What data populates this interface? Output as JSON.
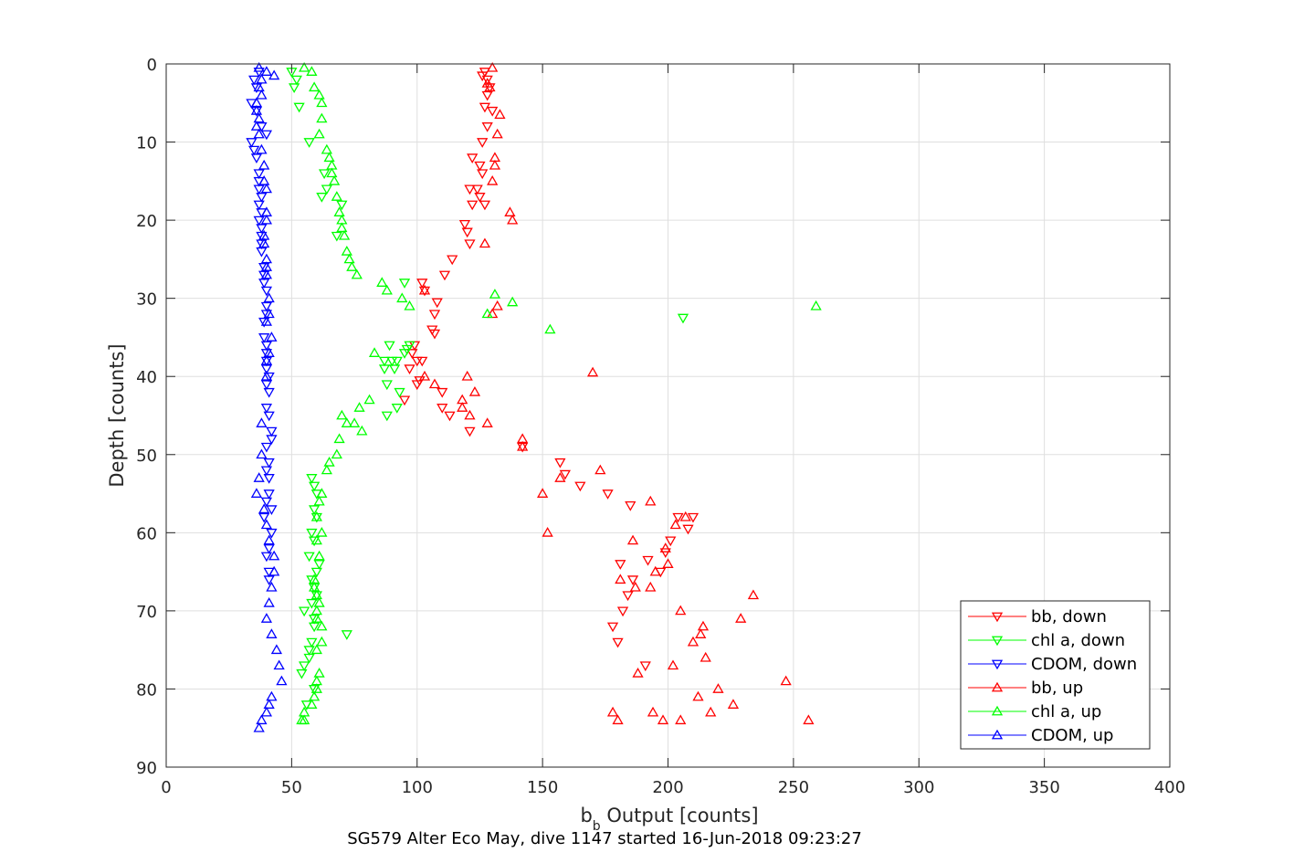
{
  "chart_data": {
    "type": "scatter",
    "xlabel_main": "b",
    "xlabel_sub": "b",
    "xlabel_rest": " Output [counts]",
    "ylabel": "Depth [counts]",
    "title": "SG579 Alter Eco May, dive 1147 started 16-Jun-2018 09:23:27",
    "xlim": [
      0,
      400
    ],
    "ylim": [
      0,
      90
    ],
    "y_reversed": true,
    "grid": true,
    "xticks": [
      "0",
      "50",
      "100",
      "150",
      "200",
      "250",
      "300",
      "350",
      "400"
    ],
    "yticks": [
      "0",
      "10",
      "20",
      "30",
      "40",
      "50",
      "60",
      "70",
      "80",
      "90"
    ],
    "legend_position": "bottom-right",
    "series": [
      {
        "name": "bb, down",
        "color": "#ff0000",
        "marker": "triangle-down",
        "x": [
          127,
          126,
          128,
          129,
          128,
          127,
          130,
          128,
          126,
          122,
          125,
          126,
          124,
          121,
          125,
          122,
          127,
          119,
          120,
          121,
          114,
          111,
          102,
          103,
          108,
          107,
          106,
          107,
          99,
          98,
          102,
          100,
          97,
          101,
          100,
          110,
          95,
          110,
          113,
          121,
          142,
          157,
          159,
          165,
          176,
          185,
          204,
          210,
          208,
          201,
          199,
          192,
          197,
          181,
          186,
          184,
          182,
          178,
          180,
          191
        ],
        "y": [
          1,
          1.5,
          2,
          3,
          4,
          5.5,
          6,
          8,
          10,
          12,
          13,
          14,
          16,
          16,
          17,
          18,
          18,
          20.5,
          21.5,
          23,
          25,
          27,
          28,
          29,
          30.5,
          32,
          34,
          34.5,
          36,
          37,
          38,
          38,
          39,
          40.5,
          41,
          42,
          43,
          44,
          45,
          47,
          49,
          51,
          52.5,
          54,
          55,
          56.5,
          58,
          58,
          59.5,
          61,
          62.5,
          63.5,
          65,
          64,
          66,
          68,
          70,
          72,
          74,
          77
        ]
      },
      {
        "name": "chl a, down",
        "color": "#00ff00",
        "marker": "triangle-down",
        "x": [
          50,
          52,
          51,
          53,
          57,
          63,
          64,
          62,
          70,
          68,
          95,
          90,
          87,
          88,
          93,
          97,
          96,
          95,
          92,
          91,
          88,
          87,
          89,
          92,
          58,
          59,
          60,
          59,
          60,
          58,
          59,
          57,
          61,
          60,
          58,
          59,
          60,
          58,
          55,
          59,
          59,
          58,
          57,
          57,
          55,
          54,
          72,
          59,
          56,
          206
        ],
        "y": [
          1,
          2,
          3,
          5.5,
          10,
          14,
          16,
          17,
          18,
          22,
          28,
          38,
          39,
          41,
          42,
          36,
          36.5,
          37,
          38,
          39,
          45,
          38,
          36,
          44,
          53,
          54,
          55,
          57,
          58,
          60,
          61,
          63,
          64,
          65,
          66,
          67,
          68,
          69,
          70,
          71,
          72,
          74,
          75,
          76,
          77,
          78,
          73,
          80,
          82,
          32.5
        ]
      },
      {
        "name": "CDOM, down",
        "color": "#0000ff",
        "marker": "triangle-down",
        "x": [
          37,
          35,
          36,
          34,
          36,
          38,
          40,
          34,
          35,
          36,
          37,
          37,
          37,
          38,
          37,
          38,
          37,
          38,
          38,
          38,
          38,
          39,
          39,
          39,
          40,
          40,
          40,
          39,
          39,
          40,
          40,
          40,
          40,
          41,
          40,
          41,
          40,
          41,
          42,
          42,
          40,
          41,
          40,
          41,
          41,
          40,
          42,
          39,
          42,
          41,
          40,
          41,
          41
        ],
        "y": [
          1,
          2,
          3,
          5,
          6,
          8,
          9,
          10,
          11,
          12,
          14,
          15,
          16,
          17,
          18,
          19,
          20,
          21,
          22,
          23,
          24,
          26,
          27,
          28,
          29,
          31,
          32,
          33,
          35,
          36,
          37,
          38,
          39,
          40,
          41,
          42,
          44,
          45,
          47,
          48,
          49,
          51,
          52,
          53,
          55,
          56,
          57,
          58,
          60,
          62,
          63,
          65,
          66
        ]
      },
      {
        "name": "bb, up",
        "color": "#ff0000",
        "marker": "triangle-up",
        "x": [
          130,
          128,
          129,
          133,
          132,
          131,
          131,
          130,
          137,
          138,
          132,
          130,
          120,
          121,
          118,
          127,
          103,
          107,
          170,
          103,
          123,
          118,
          128,
          142,
          142,
          150,
          152,
          173,
          157,
          193,
          186,
          207,
          203,
          199,
          200,
          181,
          187,
          195,
          193,
          205,
          214,
          234,
          229,
          213,
          215,
          202,
          210,
          220,
          247,
          226,
          217,
          212,
          194,
          205,
          198,
          178,
          180,
          188,
          256
        ],
        "y": [
          0.5,
          2.5,
          3,
          6.5,
          9,
          12,
          13,
          15,
          19,
          20,
          31,
          32,
          40,
          45,
          43,
          23,
          29,
          41,
          39.5,
          40,
          42,
          44,
          46,
          48,
          49,
          55,
          60,
          52,
          53,
          56,
          61,
          58,
          59,
          62,
          64,
          66,
          67,
          65,
          67,
          70,
          72,
          68,
          71,
          73,
          76,
          77,
          74,
          80,
          79,
          82,
          83,
          81,
          83,
          84,
          84,
          83,
          84,
          78,
          84
        ]
      },
      {
        "name": "chl a, up",
        "color": "#00ff00",
        "marker": "triangle-up",
        "x": [
          55,
          58,
          59,
          61,
          62,
          62,
          61,
          64,
          65,
          66,
          66,
          67,
          68,
          69,
          70,
          70,
          71,
          72,
          73,
          74,
          76,
          86,
          88,
          94,
          97,
          83,
          81,
          77,
          75,
          78,
          72,
          70,
          69,
          68,
          65,
          64,
          62,
          61,
          60,
          62,
          60,
          61,
          59,
          59,
          60,
          61,
          60,
          60,
          62,
          62,
          60,
          61,
          60,
          60,
          59,
          58,
          55,
          55,
          54,
          131,
          138,
          128,
          153,
          259
        ],
        "y": [
          0.5,
          1,
          3,
          4,
          5,
          7,
          9,
          11,
          12,
          13,
          14,
          15,
          17,
          19,
          20,
          21,
          22,
          24,
          25,
          26,
          27,
          28,
          29,
          30,
          31,
          37,
          43,
          44,
          46,
          47,
          46,
          45,
          48,
          50,
          51,
          52,
          55,
          56,
          58,
          60,
          61,
          63,
          66,
          67,
          68,
          69,
          70,
          71,
          72,
          74,
          75,
          78,
          79,
          80,
          81,
          82,
          83,
          84,
          84,
          29.5,
          30.5,
          32,
          34,
          31
        ]
      },
      {
        "name": "CDOM, up",
        "color": "#0000ff",
        "marker": "triangle-up",
        "x": [
          37,
          40,
          43,
          38,
          37,
          38,
          36,
          36,
          37,
          36,
          37,
          38,
          39,
          39,
          40,
          40,
          40,
          39,
          39,
          40,
          40,
          40,
          41,
          41,
          40,
          42,
          41,
          40,
          40,
          38,
          38,
          37,
          36,
          39,
          40,
          41,
          43,
          43,
          42,
          41,
          40,
          42,
          44,
          45,
          46,
          42,
          41,
          40,
          38,
          37
        ],
        "y": [
          0.5,
          1,
          1.5,
          2,
          3,
          4,
          5,
          6,
          7,
          8,
          9,
          11,
          13,
          15,
          16,
          19,
          20,
          22,
          23,
          25,
          26,
          27,
          30,
          32,
          33,
          35,
          37,
          38,
          40,
          46,
          50,
          53,
          55,
          57,
          59,
          61,
          63,
          65,
          67,
          69,
          71,
          73,
          75,
          77,
          79,
          81,
          82,
          83,
          84,
          85
        ]
      }
    ]
  }
}
